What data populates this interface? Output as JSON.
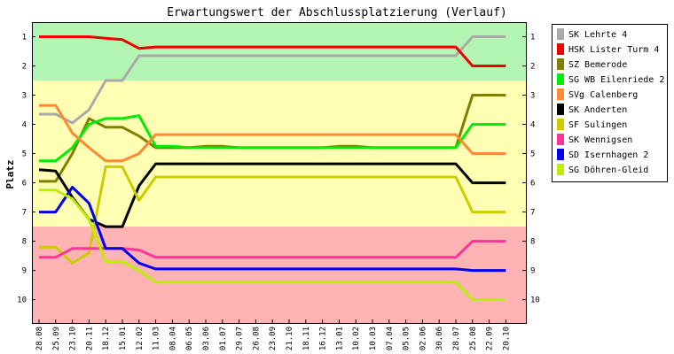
{
  "chart_data": {
    "type": "line",
    "title": "Erwartungswert der Abschlussplatzierung (Verlauf)",
    "xlabel": "",
    "ylabel": "Platz",
    "ylim": [
      0.5,
      10.8
    ],
    "y_inverted": true,
    "y_ticks": [
      1,
      2,
      3,
      4,
      5,
      6,
      7,
      8,
      9,
      10
    ],
    "grid": false,
    "legend_position": "right",
    "zones": [
      {
        "from": 0.5,
        "to": 2.5,
        "color": "#b3f5b3"
      },
      {
        "from": 2.5,
        "to": 7.5,
        "color": "#ffffb3"
      },
      {
        "from": 7.5,
        "to": 10.8,
        "color": "#ffb3b3"
      }
    ],
    "x": [
      "28.08",
      "25.09",
      "23.10",
      "20.11",
      "18.12",
      "15.01",
      "12.02",
      "11.03",
      "08.04",
      "06.05",
      "03.06",
      "01.07",
      "29.07",
      "26.08",
      "23.09",
      "21.10",
      "18.11",
      "16.12",
      "13.01",
      "10.02",
      "10.03",
      "07.04",
      "05.05",
      "02.06",
      "30.06",
      "28.07",
      "25.08",
      "22.09",
      "20.10"
    ],
    "series": [
      {
        "name": "SK Lehrte 4",
        "color": "#aaaaaa",
        "values": [
          3.65,
          3.65,
          3.95,
          3.5,
          2.5,
          2.5,
          1.65,
          1.65,
          1.65,
          1.65,
          1.65,
          1.65,
          1.65,
          1.65,
          1.65,
          1.65,
          1.65,
          1.65,
          1.65,
          1.65,
          1.65,
          1.65,
          1.65,
          1.65,
          1.65,
          1.65,
          1.0,
          1.0,
          1.0
        ]
      },
      {
        "name": "HSK Lister Turm 4",
        "color": "#ee0000",
        "values": [
          1.0,
          1.0,
          1.0,
          1.0,
          1.05,
          1.1,
          1.4,
          1.35,
          1.35,
          1.35,
          1.35,
          1.35,
          1.35,
          1.35,
          1.35,
          1.35,
          1.35,
          1.35,
          1.35,
          1.35,
          1.35,
          1.35,
          1.35,
          1.35,
          1.35,
          1.35,
          2.0,
          2.0,
          2.0
        ]
      },
      {
        "name": "SZ Bemerode",
        "color": "#808000",
        "values": [
          5.95,
          5.95,
          5.0,
          3.8,
          4.1,
          4.1,
          4.4,
          4.8,
          4.8,
          4.8,
          4.75,
          4.75,
          4.8,
          4.8,
          4.8,
          4.8,
          4.8,
          4.8,
          4.75,
          4.75,
          4.8,
          4.8,
          4.8,
          4.8,
          4.8,
          4.8,
          3.0,
          3.0,
          3.0
        ]
      },
      {
        "name": "SG WB Eilenriede 2",
        "color": "#00ee00",
        "values": [
          5.25,
          5.25,
          4.8,
          4.0,
          3.8,
          3.8,
          3.7,
          4.75,
          4.75,
          4.8,
          4.8,
          4.8,
          4.8,
          4.8,
          4.8,
          4.8,
          4.8,
          4.8,
          4.8,
          4.8,
          4.8,
          4.8,
          4.8,
          4.8,
          4.8,
          4.8,
          4.0,
          4.0,
          4.0
        ]
      },
      {
        "name": "SVg Calenberg",
        "color": "#ff8833",
        "values": [
          3.35,
          3.35,
          4.3,
          4.8,
          5.25,
          5.25,
          5.0,
          4.35,
          4.35,
          4.35,
          4.35,
          4.35,
          4.35,
          4.35,
          4.35,
          4.35,
          4.35,
          4.35,
          4.35,
          4.35,
          4.35,
          4.35,
          4.35,
          4.35,
          4.35,
          4.35,
          5.0,
          5.0,
          5.0
        ]
      },
      {
        "name": "SK Anderten",
        "color": "#000000",
        "values": [
          5.55,
          5.6,
          6.5,
          7.25,
          7.5,
          7.5,
          6.1,
          5.35,
          5.35,
          5.35,
          5.35,
          5.35,
          5.35,
          5.35,
          5.35,
          5.35,
          5.35,
          5.35,
          5.35,
          5.35,
          5.35,
          5.35,
          5.35,
          5.35,
          5.35,
          5.35,
          6.0,
          6.0,
          6.0
        ]
      },
      {
        "name": "SF Sulingen",
        "color": "#cccc00",
        "values": [
          8.2,
          8.2,
          8.75,
          8.4,
          5.45,
          5.45,
          6.6,
          5.8,
          5.8,
          5.8,
          5.8,
          5.8,
          5.8,
          5.8,
          5.8,
          5.8,
          5.8,
          5.8,
          5.8,
          5.8,
          5.8,
          5.8,
          5.8,
          5.8,
          5.8,
          5.8,
          7.0,
          7.0,
          7.0
        ]
      },
      {
        "name": "SK Wennigsen",
        "color": "#ff3399",
        "values": [
          8.55,
          8.55,
          8.25,
          8.25,
          8.25,
          8.25,
          8.3,
          8.55,
          8.55,
          8.55,
          8.55,
          8.55,
          8.55,
          8.55,
          8.55,
          8.55,
          8.55,
          8.55,
          8.55,
          8.55,
          8.55,
          8.55,
          8.55,
          8.55,
          8.55,
          8.55,
          8.0,
          8.0,
          8.0
        ]
      },
      {
        "name": "SD Isernhagen 2",
        "color": "#0000ee",
        "values": [
          7.0,
          7.0,
          6.15,
          6.7,
          8.25,
          8.25,
          8.75,
          8.95,
          8.95,
          8.95,
          8.95,
          8.95,
          8.95,
          8.95,
          8.95,
          8.95,
          8.95,
          8.95,
          8.95,
          8.95,
          8.95,
          8.95,
          8.95,
          8.95,
          8.95,
          8.95,
          9.0,
          9.0,
          9.0
        ]
      },
      {
        "name": "SG Döhren-Gleid",
        "color": "#bbee00",
        "values": [
          6.25,
          6.25,
          6.55,
          7.25,
          8.7,
          8.7,
          9.0,
          9.4,
          9.4,
          9.4,
          9.4,
          9.4,
          9.4,
          9.4,
          9.4,
          9.4,
          9.4,
          9.4,
          9.4,
          9.4,
          9.4,
          9.4,
          9.4,
          9.4,
          9.4,
          9.4,
          10.0,
          10.0,
          10.0
        ]
      }
    ]
  }
}
